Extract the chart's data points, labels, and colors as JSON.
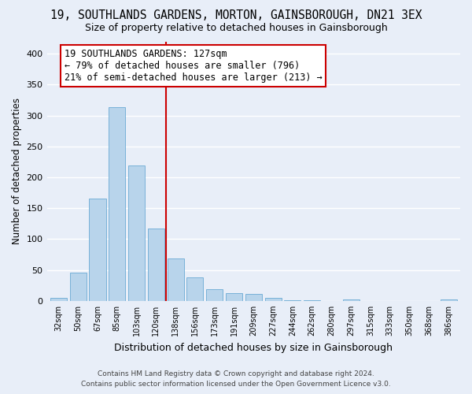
{
  "title": "19, SOUTHLANDS GARDENS, MORTON, GAINSBOROUGH, DN21 3EX",
  "subtitle": "Size of property relative to detached houses in Gainsborough",
  "xlabel": "Distribution of detached houses by size in Gainsborough",
  "ylabel": "Number of detached properties",
  "bar_labels": [
    "32sqm",
    "50sqm",
    "67sqm",
    "85sqm",
    "103sqm",
    "120sqm",
    "138sqm",
    "156sqm",
    "173sqm",
    "191sqm",
    "209sqm",
    "227sqm",
    "244sqm",
    "262sqm",
    "280sqm",
    "297sqm",
    "315sqm",
    "333sqm",
    "350sqm",
    "368sqm",
    "386sqm"
  ],
  "bar_values": [
    5,
    46,
    166,
    313,
    219,
    117,
    69,
    38,
    19,
    13,
    11,
    5,
    1,
    1,
    0,
    2,
    0,
    0,
    0,
    0,
    2
  ],
  "bar_color": "#b8d4eb",
  "bar_edge_color": "#6aaad4",
  "vline_x": 5.5,
  "vline_color": "#cc0000",
  "ylim": [
    0,
    420
  ],
  "yticks": [
    0,
    50,
    100,
    150,
    200,
    250,
    300,
    350,
    400
  ],
  "annotation_text": "19 SOUTHLANDS GARDENS: 127sqm\n← 79% of detached houses are smaller (796)\n21% of semi-detached houses are larger (213) →",
  "annotation_box_color": "#ffffff",
  "annotation_border_color": "#cc0000",
  "footer_line1": "Contains HM Land Registry data © Crown copyright and database right 2024.",
  "footer_line2": "Contains public sector information licensed under the Open Government Licence v3.0.",
  "background_color": "#e8eef8",
  "grid_color": "#ffffff",
  "title_fontsize": 10.5,
  "subtitle_fontsize": 9,
  "xlabel_fontsize": 9,
  "ylabel_fontsize": 8.5,
  "annotation_fontsize": 8.5,
  "footer_fontsize": 6.5
}
